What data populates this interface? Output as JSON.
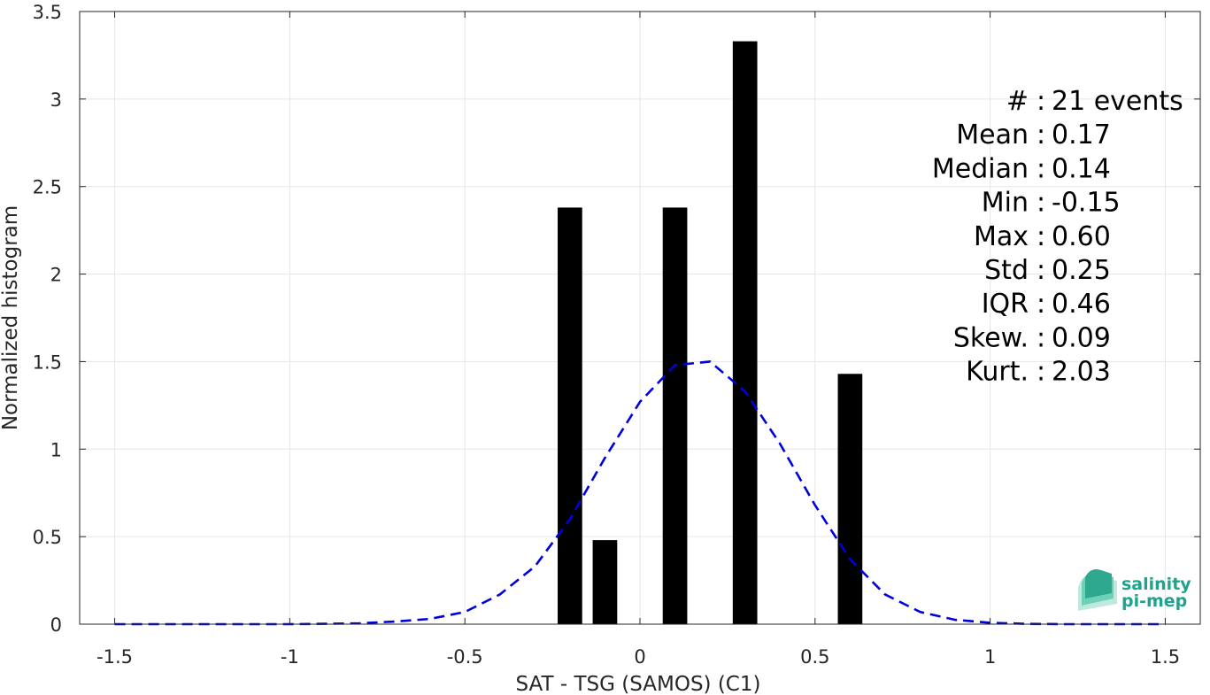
{
  "chart_data": {
    "type": "bar",
    "xlabel": "SAT - TSG (SAMOS) (C1)",
    "ylabel": "Normalized histogram",
    "xlim": [
      -1.6,
      1.6
    ],
    "ylim": [
      0,
      3.5
    ],
    "xticks": [
      -1.5,
      -1,
      -0.5,
      0,
      0.5,
      1,
      1.5
    ],
    "xtick_labels": [
      "-1.5",
      "-1",
      "-0.5",
      "0",
      "0.5",
      "1",
      "1.5"
    ],
    "yticks": [
      0,
      0.5,
      1,
      1.5,
      2,
      2.5,
      3,
      3.5
    ],
    "ytick_labels": [
      "0",
      "0.5",
      "1",
      "1.5",
      "2",
      "2.5",
      "3",
      "3.5"
    ],
    "grid": true,
    "bar_width": 0.07,
    "bars": [
      {
        "x": -0.2,
        "value": 2.38
      },
      {
        "x": -0.1,
        "value": 0.48
      },
      {
        "x": 0.1,
        "value": 2.38
      },
      {
        "x": 0.3,
        "value": 3.33
      },
      {
        "x": 0.6,
        "value": 1.43
      }
    ],
    "fit_curve": {
      "style": "dashed",
      "color": "#0000dd",
      "x": [
        -1.5,
        -1.4,
        -1.3,
        -1.2,
        -1.1,
        -1.0,
        -0.9,
        -0.8,
        -0.7,
        -0.6,
        -0.5,
        -0.4,
        -0.3,
        -0.2,
        -0.1,
        0.0,
        0.1,
        0.2,
        0.3,
        0.4,
        0.5,
        0.6,
        0.7,
        0.8,
        0.9,
        1.0,
        1.1,
        1.2,
        1.3,
        1.4,
        1.5
      ],
      "y": [
        0.0,
        0.0,
        0.0,
        0.0,
        0.0,
        0.0,
        0.002,
        0.005,
        0.015,
        0.03,
        0.07,
        0.17,
        0.33,
        0.6,
        0.95,
        1.27,
        1.48,
        1.5,
        1.33,
        1.03,
        0.68,
        0.37,
        0.17,
        0.07,
        0.025,
        0.008,
        0.002,
        0.0,
        0.0,
        0.0,
        0.0
      ]
    },
    "stats": [
      "#  : 21 events",
      "Mean : 0.17",
      "Median : 0.14",
      "Min : -0.15",
      "Max : 0.60",
      "Std : 0.25",
      "IQR : 0.46",
      "Skew. : 0.09",
      "Kurt. : 2.03"
    ],
    "colors": {
      "bars": "#000000",
      "curve": "#0000dd",
      "grid": "#e6e6e6",
      "axis": "#262626"
    }
  },
  "logo": {
    "line1": "salinity",
    "line2": "pi-mep"
  }
}
